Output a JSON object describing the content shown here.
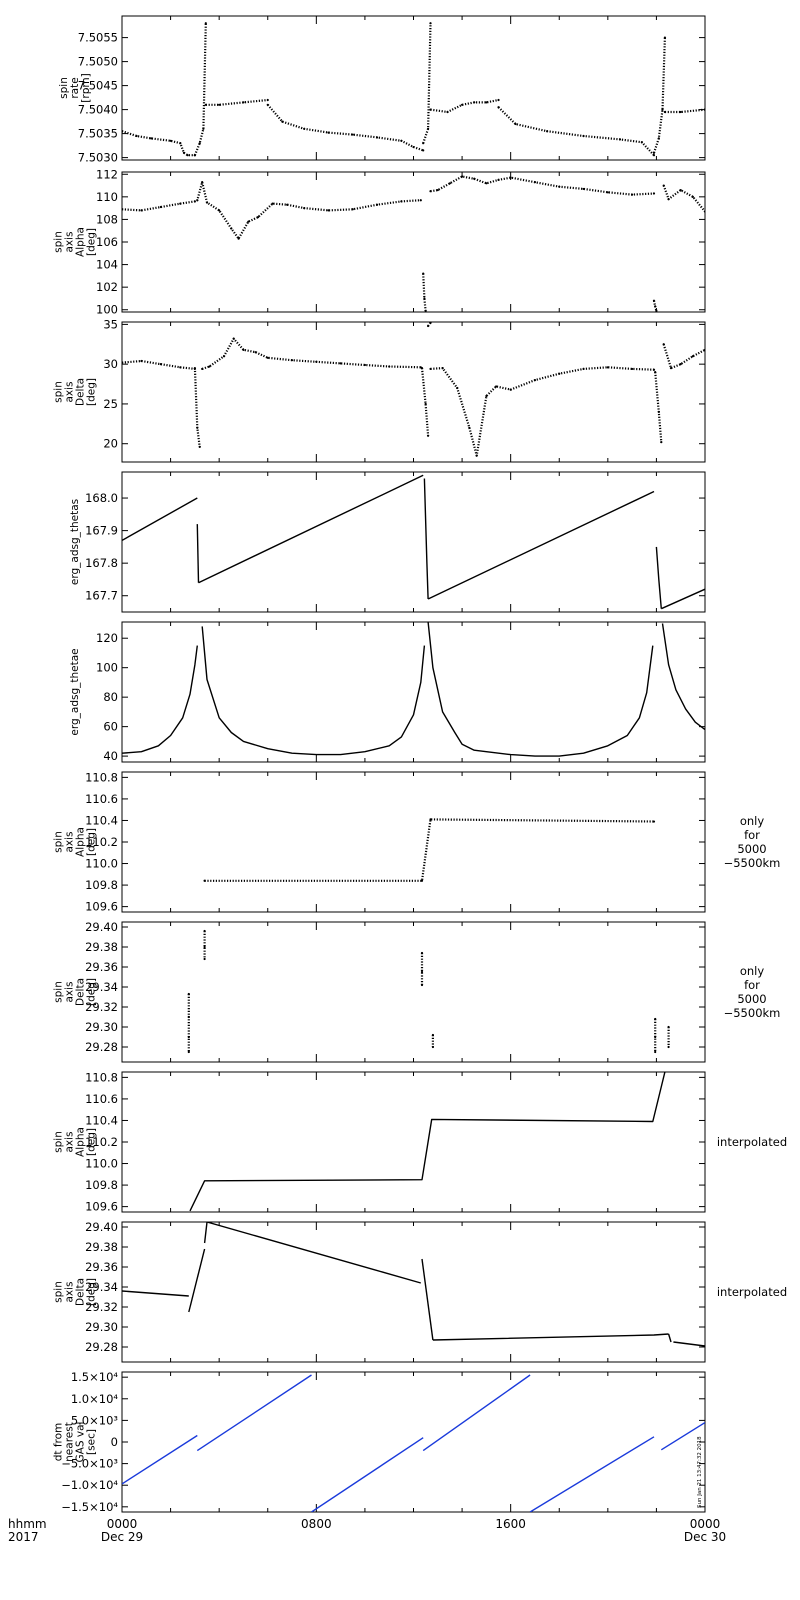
{
  "chart_data": [
    {
      "type": "scatter",
      "ylabel": [
        "spin",
        "rate",
        "[rpm]"
      ],
      "ylim": [
        7.50295,
        7.50595
      ],
      "ytick_labels": [
        "7.5030",
        "7.5035",
        "7.5040",
        "7.5045",
        "7.5050",
        "7.5055"
      ],
      "ytick_values": [
        7.503,
        7.5035,
        7.504,
        7.5045,
        7.505,
        7.5055
      ],
      "color": "#000000",
      "series": [
        {
          "x": [
            0.0,
            0.6,
            1.2,
            2.0,
            2.4,
            2.55,
            2.7,
            3.0
          ],
          "y": [
            7.50355,
            7.50345,
            7.5034,
            7.50335,
            7.5033,
            7.5031,
            7.50305,
            7.50305
          ]
        },
        {
          "x": [
            3.0,
            3.2,
            3.35,
            3.45
          ],
          "y": [
            7.50305,
            7.5033,
            7.5036,
            7.5058
          ]
        },
        {
          "x": [
            3.45,
            4.0,
            5.0,
            6.0
          ],
          "y": [
            7.5041,
            7.5041,
            7.50415,
            7.5042
          ]
        },
        {
          "x": [
            6.0,
            6.6,
            7.5,
            8.5,
            9.5,
            10.5,
            11.5,
            12.0,
            12.4
          ],
          "y": [
            7.5041,
            7.50375,
            7.5036,
            7.50352,
            7.50348,
            7.50342,
            7.50335,
            7.50322,
            7.50315
          ]
        },
        {
          "x": [
            12.4,
            12.6,
            12.7
          ],
          "y": [
            7.5033,
            7.5036,
            7.5058
          ]
        },
        {
          "x": [
            12.7,
            13.4,
            14.0,
            14.5,
            15.0,
            15.5
          ],
          "y": [
            7.504,
            7.50395,
            7.5041,
            7.50415,
            7.50415,
            7.5042
          ]
        },
        {
          "x": [
            15.5,
            16.2,
            17.5,
            19.0,
            20.5,
            21.4,
            21.9
          ],
          "y": [
            7.50405,
            7.5037,
            7.50355,
            7.50345,
            7.50338,
            7.50332,
            7.50305
          ]
        },
        {
          "x": [
            21.9,
            22.1,
            22.25,
            22.35
          ],
          "y": [
            7.5031,
            7.5034,
            7.504,
            7.5055
          ]
        },
        {
          "x": [
            22.35,
            23.0,
            24.0
          ],
          "y": [
            7.50395,
            7.50395,
            7.504
          ]
        }
      ]
    },
    {
      "type": "scatter",
      "ylabel": [
        "spin",
        "axis",
        "Alpha",
        "[deg]"
      ],
      "ylim": [
        99.8,
        112.2
      ],
      "ytick_labels": [
        "100",
        "102",
        "104",
        "106",
        "108",
        "110",
        "112"
      ],
      "ytick_values": [
        100,
        102,
        104,
        106,
        108,
        110,
        112
      ],
      "color": "#000000",
      "series": [
        {
          "x": [
            0.0,
            0.8,
            1.6,
            2.4,
            3.0,
            3.1,
            3.3,
            3.5,
            4.0,
            4.5,
            4.8,
            5.2,
            5.6,
            6.2,
            6.8,
            7.5,
            8.5,
            9.5,
            10.5,
            11.5,
            12.3
          ],
          "y": [
            108.9,
            108.8,
            109.1,
            109.4,
            109.6,
            109.7,
            111.3,
            109.5,
            108.8,
            107.2,
            106.3,
            107.8,
            108.2,
            109.4,
            109.3,
            109.0,
            108.8,
            108.9,
            109.3,
            109.6,
            109.7
          ]
        },
        {
          "x": [
            12.4,
            12.45,
            12.5
          ],
          "y": [
            103.2,
            101.0,
            99.9
          ]
        },
        {
          "x": [
            12.7,
            13.0,
            13.5,
            14.0,
            14.5,
            15.0,
            15.5,
            16.0,
            17.0,
            18.0,
            19.0,
            20.0,
            21.0,
            21.9
          ],
          "y": [
            110.5,
            110.6,
            111.2,
            111.8,
            111.6,
            111.2,
            111.5,
            111.7,
            111.3,
            110.9,
            110.7,
            110.4,
            110.2,
            110.3
          ]
        },
        {
          "x": [
            21.9,
            21.95,
            22.0
          ],
          "y": [
            100.8,
            100.3,
            99.9
          ]
        },
        {
          "x": [
            22.3,
            22.5,
            23.0,
            23.5,
            24.0
          ],
          "y": [
            111.0,
            109.8,
            110.6,
            110.0,
            108.7
          ]
        }
      ]
    },
    {
      "type": "scatter",
      "ylabel": [
        "spin",
        "axis",
        "Delta",
        "[deg]"
      ],
      "ylim": [
        17.7,
        35.3
      ],
      "ytick_labels": [
        "20",
        "25",
        "30",
        "35"
      ],
      "ytick_values": [
        20,
        25,
        30,
        35
      ],
      "color": "#000000",
      "series": [
        {
          "x": [
            0.0,
            0.8,
            1.6,
            2.4,
            3.0
          ],
          "y": [
            30.2,
            30.4,
            30.0,
            29.6,
            29.4
          ]
        },
        {
          "x": [
            3.0,
            3.1,
            3.2
          ],
          "y": [
            29.5,
            22.0,
            19.6
          ]
        },
        {
          "x": [
            3.3,
            3.6,
            4.2,
            4.6,
            5.0,
            5.5,
            6.0,
            7.0,
            8.0,
            9.0,
            10.0,
            11.0,
            12.3
          ],
          "y": [
            29.4,
            29.7,
            31.0,
            33.2,
            31.8,
            31.5,
            30.8,
            30.5,
            30.3,
            30.1,
            29.9,
            29.7,
            29.6
          ]
        },
        {
          "x": [
            12.35,
            12.5,
            12.6
          ],
          "y": [
            29.5,
            25.0,
            21.0
          ]
        },
        {
          "x": [
            12.6,
            12.7
          ],
          "y": [
            34.8,
            35.2
          ]
        },
        {
          "x": [
            12.7,
            13.2,
            13.8,
            14.3,
            14.6,
            15.0,
            15.4,
            16.0,
            17.0,
            18.0,
            19.0,
            20.0,
            21.0,
            21.9
          ],
          "y": [
            29.4,
            29.5,
            27.0,
            22.0,
            18.5,
            26.0,
            27.2,
            26.8,
            28.0,
            28.8,
            29.4,
            29.6,
            29.4,
            29.3
          ]
        },
        {
          "x": [
            21.95,
            22.1,
            22.2
          ],
          "y": [
            29.0,
            24.0,
            20.2
          ]
        },
        {
          "x": [
            22.3,
            22.6,
            23.0,
            23.5,
            24.0
          ],
          "y": [
            32.5,
            29.5,
            30.0,
            31.0,
            31.8
          ]
        }
      ]
    },
    {
      "type": "line",
      "ylabel": [
        "erg_adsg_thetas"
      ],
      "ylim": [
        167.65,
        168.08
      ],
      "ytick_labels": [
        "167.7",
        "167.8",
        "167.9",
        "168.0"
      ],
      "ytick_values": [
        167.7,
        167.8,
        167.9,
        168.0
      ],
      "color": "#000000",
      "series": [
        {
          "x": [
            0.0,
            3.1
          ],
          "y": [
            167.87,
            168.0
          ]
        },
        {
          "x": [
            3.1,
            3.15
          ],
          "y": [
            167.92,
            167.74
          ]
        },
        {
          "x": [
            3.15,
            12.4
          ],
          "y": [
            167.74,
            168.07
          ]
        },
        {
          "x": [
            12.45,
            12.55,
            12.6
          ],
          "y": [
            168.06,
            167.8,
            167.69
          ]
        },
        {
          "x": [
            12.6,
            21.9
          ],
          "y": [
            167.69,
            168.02
          ]
        },
        {
          "x": [
            22.0,
            22.1,
            22.2
          ],
          "y": [
            167.85,
            167.75,
            167.66
          ]
        },
        {
          "x": [
            22.2,
            24.0
          ],
          "y": [
            167.66,
            167.72
          ]
        }
      ]
    },
    {
      "type": "line",
      "ylabel": [
        "erg_adsg_thetae"
      ],
      "ylim": [
        36.0,
        131.0
      ],
      "ytick_labels": [
        "40",
        "60",
        "80",
        "100",
        "120"
      ],
      "ytick_values": [
        40,
        60,
        80,
        100,
        120
      ],
      "color": "#000000",
      "series": [
        {
          "x": [
            0.0,
            0.8,
            1.5,
            2.0,
            2.5,
            2.8,
            3.0,
            3.1
          ],
          "y": [
            42,
            43,
            47,
            54,
            66,
            82,
            102,
            115
          ]
        },
        {
          "x": [
            3.3,
            3.5,
            4.0,
            4.5,
            5.0,
            6.0,
            7.0,
            8.0,
            9.0,
            10.0,
            11.0,
            11.5,
            12.0,
            12.3,
            12.45
          ],
          "y": [
            128,
            92,
            66,
            56,
            50,
            45,
            42,
            41,
            41,
            43,
            47,
            53,
            68,
            90,
            115
          ]
        },
        {
          "x": [
            12.6,
            12.8,
            13.2,
            13.7,
            14.0,
            14.5,
            15.0,
            16.0,
            17.0,
            18.0,
            19.0,
            20.0,
            20.8,
            21.3,
            21.6,
            21.85
          ],
          "y": [
            131,
            100,
            70,
            56,
            48,
            44,
            43,
            41,
            40,
            40,
            42,
            47,
            54,
            66,
            83,
            115
          ]
        },
        {
          "x": [
            22.25,
            22.5,
            22.8,
            23.2,
            23.6,
            24.0
          ],
          "y": [
            130,
            102,
            85,
            72,
            63,
            58
          ]
        }
      ]
    },
    {
      "type": "scatter",
      "ylabel": [
        "spin",
        "axis",
        "Alpha",
        "[deg]"
      ],
      "ylim": [
        109.55,
        110.85
      ],
      "ytick_labels": [
        "109.6",
        "109.8",
        "110.0",
        "110.2",
        "110.4",
        "110.6",
        "110.8"
      ],
      "ytick_values": [
        109.6,
        109.8,
        110.0,
        110.2,
        110.4,
        110.6,
        110.8
      ],
      "side_note": [
        "only",
        "for",
        "5000",
        "−5500km"
      ],
      "color": "#000000",
      "series": [
        {
          "x": [
            3.4,
            12.35,
            12.7,
            21.9
          ],
          "y": [
            109.84,
            109.84,
            110.41,
            110.39
          ]
        }
      ]
    },
    {
      "type": "scatter",
      "ylabel": [
        "spin",
        "axis",
        "Delta",
        "[deg]"
      ],
      "ylim": [
        29.265,
        29.405
      ],
      "ytick_labels": [
        "29.28",
        "29.30",
        "29.32",
        "29.34",
        "29.36",
        "29.38",
        "29.40"
      ],
      "ytick_values": [
        29.28,
        29.3,
        29.32,
        29.34,
        29.36,
        29.38,
        29.4
      ],
      "side_note": [
        "only",
        "for",
        "5000",
        "−5500km"
      ],
      "color": "#000000",
      "series": [
        {
          "x": [
            2.75,
            2.75,
            2.75,
            2.75
          ],
          "y": [
            29.333,
            29.31,
            29.29,
            29.275
          ]
        },
        {
          "x": [
            3.4,
            3.4,
            3.4
          ],
          "y": [
            29.396,
            29.38,
            29.368
          ]
        },
        {
          "x": [
            12.35,
            12.35,
            12.35
          ],
          "y": [
            29.374,
            29.355,
            29.342
          ]
        },
        {
          "x": [
            12.8,
            12.8
          ],
          "y": [
            29.292,
            29.28
          ]
        },
        {
          "x": [
            21.95,
            21.95,
            21.95
          ],
          "y": [
            29.308,
            29.29,
            29.275
          ]
        },
        {
          "x": [
            22.5,
            22.5
          ],
          "y": [
            29.3,
            29.28
          ]
        }
      ]
    },
    {
      "type": "line",
      "ylabel": [
        "spin",
        "axis",
        "Alpha",
        "[deg]"
      ],
      "ylim": [
        109.55,
        110.85
      ],
      "ytick_labels": [
        "109.6",
        "109.8",
        "110.0",
        "110.2",
        "110.4",
        "110.6",
        "110.8"
      ],
      "ytick_values": [
        109.6,
        109.8,
        110.0,
        110.2,
        110.4,
        110.6,
        110.8
      ],
      "side_note": [
        "interpolated"
      ],
      "color": "#000000",
      "series": [
        {
          "x": [
            2.8,
            3.4,
            12.35,
            12.75,
            21.85,
            22.35
          ],
          "y": [
            109.56,
            109.84,
            109.85,
            110.41,
            110.39,
            110.85
          ]
        }
      ]
    },
    {
      "type": "line",
      "ylabel": [
        "spin",
        "axis",
        "Delta",
        "[deg]"
      ],
      "ylim": [
        29.265,
        29.405
      ],
      "ytick_labels": [
        "29.28",
        "29.30",
        "29.32",
        "29.34",
        "29.36",
        "29.38",
        "29.40"
      ],
      "ytick_values": [
        29.28,
        29.3,
        29.32,
        29.34,
        29.36,
        29.38,
        29.4
      ],
      "side_note": [
        "interpolated"
      ],
      "color": "#000000",
      "series": [
        {
          "x": [
            0.0,
            2.75
          ],
          "y": [
            29.336,
            29.331
          ]
        },
        {
          "x": [
            2.75,
            3.4
          ],
          "y": [
            29.315,
            29.378
          ]
        },
        {
          "x": [
            3.4,
            3.5,
            12.3
          ],
          "y": [
            29.384,
            29.405,
            29.344
          ]
        },
        {
          "x": [
            12.35,
            12.8
          ],
          "y": [
            29.368,
            29.287
          ]
        },
        {
          "x": [
            12.8,
            21.9,
            22.5
          ],
          "y": [
            29.287,
            29.292,
            29.293
          ]
        },
        {
          "x": [
            22.5,
            22.6
          ],
          "y": [
            29.293,
            29.285
          ]
        },
        {
          "x": [
            22.7,
            24.0
          ],
          "y": [
            29.285,
            29.281
          ]
        }
      ]
    },
    {
      "type": "line",
      "ylabel": [
        "dt from",
        "nearest",
        "GAS val",
        "[sec]"
      ],
      "ylim": [
        -16200,
        16200
      ],
      "ytick_labels": [
        "1.5×10⁴",
        "1.0×10⁴",
        "5.0×10³",
        "0",
        "−5.0×10³",
        "−1.0×10⁴",
        "−1.5×10⁴"
      ],
      "ytick_values": [
        15000,
        10000,
        5000,
        0,
        -5000,
        -10000,
        -15000
      ],
      "color": "#1a3adb",
      "series": [
        {
          "x": [
            0.0,
            3.1
          ],
          "y": [
            -9700,
            1500
          ]
        },
        {
          "x": [
            3.1,
            7.8
          ],
          "y": [
            -2000,
            15500
          ]
        },
        {
          "x": [
            7.8,
            12.4
          ],
          "y": [
            -16200,
            1000
          ]
        },
        {
          "x": [
            12.4,
            16.8
          ],
          "y": [
            -2000,
            15500
          ]
        },
        {
          "x": [
            16.8,
            21.9
          ],
          "y": [
            -16200,
            1200
          ]
        },
        {
          "x": [
            22.2,
            24.0
          ],
          "y": [
            -1800,
            4500
          ]
        }
      ]
    }
  ],
  "x_axis": {
    "unit_label": [
      "hhmm",
      "2017"
    ],
    "ticks": [
      {
        "hours": 0,
        "lines": [
          "0000",
          "Dec 29"
        ]
      },
      {
        "hours": 8,
        "lines": [
          "0800"
        ]
      },
      {
        "hours": 16,
        "lines": [
          "1600"
        ]
      },
      {
        "hours": 24,
        "lines": [
          "0000",
          "Dec 30"
        ]
      }
    ],
    "range_hours": [
      0,
      24
    ]
  },
  "timestamp": "Sun Jan 21 13:47:32 2018"
}
